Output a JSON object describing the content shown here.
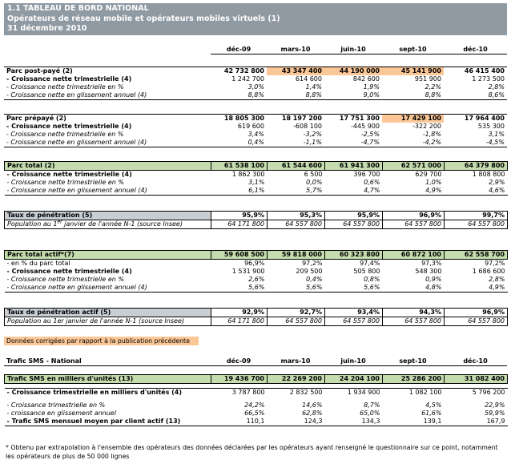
{
  "header": {
    "line1": "1.1 TABLEAU DE BORD NATIONAL",
    "line2": "Opérateurs de réseau mobile et opérateurs mobiles virtuels (1)",
    "line3": "31 décembre 2010"
  },
  "columns": [
    "déc-09",
    "mars-10",
    "juin-10",
    "sept-10",
    "déc-10"
  ],
  "postpaye": {
    "label": "Parc post-payé (2)",
    "values": [
      "42 732 800",
      "43 347 400",
      "44 190 000",
      "45 141 900",
      "46 415 400"
    ],
    "rows": [
      {
        "label": "- Croissance nette trimestrielle (4)",
        "values": [
          "1 242 700",
          "614 600",
          "842 600",
          "951 900",
          "1 273 500"
        ]
      },
      {
        "label": "- Croissance nette trimestrielle en %",
        "values": [
          "3,0%",
          "1,4%",
          "1,9%",
          "2,2%",
          "2,8%"
        ]
      },
      {
        "label": "- Croissance nette en glissement annuel (4)",
        "values": [
          "8,8%",
          "8,8%",
          "9,0%",
          "8,8%",
          "8,6%"
        ]
      }
    ]
  },
  "prepaye": {
    "label": "Parc prépayé (2)",
    "values": [
      "18 805 300",
      "18 197 200",
      "17 751 300",
      "17 429 100",
      "17 964 400"
    ],
    "rows": [
      {
        "label": "- Croissance nette trimestrielle (4)",
        "values": [
          "619 600",
          "-608 100",
          "-445 900",
          "-322 200",
          "535 300"
        ]
      },
      {
        "label": "- Croissance nette trimestrielle en %",
        "values": [
          "3,4%",
          "-3,2%",
          "-2,5%",
          "-1,8%",
          "3,1%"
        ]
      },
      {
        "label": "- Croissance nette en glissement annuel (4)",
        "values": [
          "0,4%",
          "-1,1%",
          "-4,7%",
          "-4,2%",
          "-4,5%"
        ]
      }
    ]
  },
  "total": {
    "label": "Parc total (2)",
    "values": [
      "61 538 100",
      "61 544 600",
      "61 941 300",
      "62 571 000",
      "64 379 800"
    ],
    "rows": [
      {
        "label": "- Croissance nette trimestrielle (4)",
        "values": [
          "1 862 300",
          "6 500",
          "396 700",
          "629 700",
          "1 808 800"
        ]
      },
      {
        "label": "- Croissance nette trimestrielle en %",
        "values": [
          "3,1%",
          "0,0%",
          "0,6%",
          "1,0%",
          "2,9%"
        ]
      },
      {
        "label": "- Croissance nette en glissement annuel (4)",
        "values": [
          "6,1%",
          "5,7%",
          "4,7%",
          "4,9%",
          "4,6%"
        ]
      }
    ]
  },
  "penetration": {
    "label": "Taux de pénétration (5)",
    "values": [
      "95,9%",
      "95,3%",
      "95,9%",
      "96,9%",
      "99,7%"
    ],
    "pop_label_a": "Population au 1",
    "pop_label_sup": "er",
    "pop_label_b": " janvier de l'année N-1 (source Insee)",
    "pop_values": [
      "64 171 800",
      "64 557 800",
      "64 557 800",
      "64 557 800",
      "64 557 800"
    ]
  },
  "actif": {
    "label": "Parc total actif*(7)",
    "values": [
      "59 608 500",
      "59 818 000",
      "60 323 800",
      "60 872 100",
      "62 558 700"
    ],
    "rows": [
      {
        "label": "- en % du parc total",
        "values": [
          "96,9%",
          "97,2%",
          "97,4%",
          "97,3%",
          "97,2%"
        ]
      },
      {
        "label": "- Croissance nette trimestrielle (4)",
        "values": [
          "1 531 900",
          "209 500",
          "505 800",
          "548 300",
          "1 686 600"
        ]
      },
      {
        "label": "- Croissance nette trimestrielle en %",
        "values": [
          "2,6%",
          "0,4%",
          "0,8%",
          "0,9%",
          "2,8%"
        ]
      },
      {
        "label": "- Croissance nette en glissement annuel (4)",
        "values": [
          "5,6%",
          "5,6%",
          "5,6%",
          "4,8%",
          "4,9%"
        ]
      }
    ]
  },
  "penetration_actif": {
    "label": "Taux de pénétration actif (5)",
    "values": [
      "92,9%",
      "92,7%",
      "93,4%",
      "94,3%",
      "96,9%"
    ],
    "pop_label": "Population au 1er janvier de l'année N-1 (source Insee)",
    "pop_values": [
      "64 171 800",
      "64 557 800",
      "64 557 800",
      "64 557 800",
      "64 557 800"
    ]
  },
  "legend": "Données corrigées par rapport à la publication précédente",
  "sms": {
    "section_label": "Trafic SMS - National",
    "columns": [
      "déc-09",
      "mars-10",
      "juin-10",
      "sept-10",
      "déc-10"
    ],
    "label": "Trafic SMS en milliers d'unités (13)",
    "values": [
      "19 436 700",
      "22 269 200",
      "24 204 100",
      "25 286 200",
      "31 082 400"
    ],
    "rows": [
      {
        "label": "- Croissance trimestrielle en milliers d'unités (4)",
        "values": [
          "3 787 800",
          "2 832 500",
          "1 934 900",
          "1 082 100",
          "5 796 200"
        ]
      },
      {
        "label": "- Croissance trimestrielle en %",
        "values": [
          "24,2%",
          "14,6%",
          "8,7%",
          "4,5%",
          "22,9%"
        ]
      },
      {
        "label": "- croissance en glissement annuel",
        "values": [
          "66,5%",
          "62,8%",
          "65,0%",
          "61,6%",
          "59,9%"
        ]
      },
      {
        "label": "- Trafic SMS mensuel moyen par client actif (13)",
        "values": [
          "110,1",
          "124,3",
          "134,3",
          "139,1",
          "167,9"
        ]
      }
    ]
  },
  "footnote": "* Obtenu par extrapolation à l'ensemble des opérateurs des données déclarées par les opérateurs ayant renseigné le questionnaire sur ce point, notamment les opérateurs de plus de 50 000 lignes",
  "colors": {
    "header": "#8f9aa3",
    "highlight": "#fbc797",
    "green": "#c4dcae",
    "grey": "#c9ced3"
  }
}
